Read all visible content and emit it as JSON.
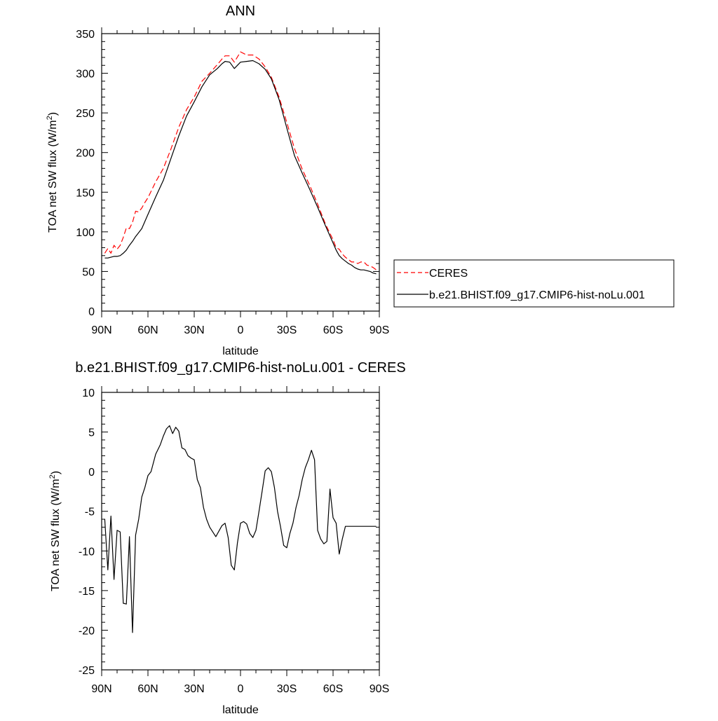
{
  "chart_data": [
    {
      "type": "line",
      "title": "ANN",
      "xlabel": "latitude",
      "ylabel": "TOA net SW flux (W/m²)",
      "ylabel_parts": {
        "main": "TOA net SW flux (W/m",
        "sup": "2",
        "end": ")"
      },
      "xlim": [
        90,
        -90
      ],
      "ylim": [
        0,
        350
      ],
      "x_ticks": [
        90,
        60,
        30,
        0,
        -30,
        -60,
        -90
      ],
      "x_tick_labels": [
        "90N",
        "60N",
        "30N",
        "0",
        "30S",
        "60S",
        "90S"
      ],
      "y_ticks": [
        0,
        50,
        100,
        150,
        200,
        250,
        300,
        350
      ],
      "y_tick_labels": [
        "0",
        "50",
        "100",
        "150",
        "200",
        "250",
        "300",
        "350"
      ],
      "x": [
        88,
        86,
        84,
        82,
        80,
        78,
        76,
        74,
        72,
        70,
        68,
        66,
        64,
        62,
        60,
        55,
        50,
        45,
        40,
        35,
        30,
        25,
        20,
        15,
        12,
        10,
        7,
        4,
        0,
        -4,
        -8,
        -12,
        -16,
        -20,
        -25,
        -30,
        -35,
        -40,
        -45,
        -50,
        -55,
        -60,
        -62,
        -64,
        -66,
        -68,
        -70,
        -72,
        -74,
        -76,
        -78,
        -80,
        -82,
        -84,
        -86,
        -88
      ],
      "series": [
        {
          "name": "CERES",
          "color": "#ff0000",
          "dash": true,
          "values": [
            73,
            79,
            73,
            83,
            78,
            83,
            93,
            105,
            104,
            112,
            126,
            125,
            130,
            137,
            143,
            163,
            180,
            205,
            232,
            254,
            270,
            290,
            300,
            311,
            318,
            322,
            322,
            314,
            327,
            323,
            323,
            318,
            308,
            295,
            270,
            238,
            205,
            179,
            158,
            135,
            110,
            90,
            80,
            78,
            72,
            68,
            65,
            62,
            62,
            60,
            62,
            62,
            58,
            57,
            55,
            52
          ]
        },
        {
          "name": "b.e21.BHIST.f09_g17.CMIP6-hist-noLu.001",
          "color": "#000000",
          "dash": false,
          "values": [
            67,
            67,
            68,
            69,
            69,
            70,
            73,
            77,
            83,
            88,
            94,
            99,
            104,
            113,
            122,
            144,
            165,
            193,
            221,
            246,
            264,
            283,
            298,
            306,
            312,
            315,
            314,
            306,
            314,
            315,
            316,
            312,
            305,
            293,
            267,
            231,
            196,
            174,
            153,
            131,
            108,
            86,
            77,
            70,
            66,
            63,
            60,
            58,
            55,
            53,
            52,
            52,
            51,
            50,
            48,
            47
          ]
        }
      ],
      "legend": {
        "placement": "right",
        "entries": [
          "CERES",
          "b.e21.BHIST.f09_g17.CMIP6-hist-noLu.001"
        ]
      }
    },
    {
      "type": "line",
      "title": "b.e21.BHIST.f09_g17.CMIP6-hist-noLu.001 - CERES",
      "xlabel": "latitude",
      "ylabel": "TOA net SW flux (W/m²)",
      "ylabel_parts": {
        "main": "TOA net SW flux (W/m",
        "sup": "2",
        "end": ")"
      },
      "xlim": [
        90,
        -90
      ],
      "ylim": [
        -25,
        10
      ],
      "x_ticks": [
        90,
        60,
        30,
        0,
        -30,
        -60,
        -90
      ],
      "x_tick_labels": [
        "90N",
        "60N",
        "30N",
        "0",
        "30S",
        "60S",
        "90S"
      ],
      "y_ticks": [
        -25,
        -20,
        -15,
        -10,
        -5,
        0,
        5,
        10
      ],
      "y_tick_labels": [
        "-25",
        "-20",
        "-15",
        "-10",
        "-5",
        "0",
        "5",
        "10"
      ],
      "x": [
        88,
        86,
        84,
        82,
        80,
        78,
        76,
        74,
        72,
        70,
        68,
        66,
        64,
        62,
        60,
        58,
        55,
        52,
        50,
        48,
        46,
        44,
        42,
        40,
        38,
        36,
        34,
        32,
        30,
        28,
        26,
        24,
        22,
        20,
        16,
        12,
        10,
        8,
        6,
        4,
        2,
        0,
        -2,
        -4,
        -6,
        -8,
        -10,
        -12,
        -14,
        -16,
        -18,
        -20,
        -22,
        -24,
        -26,
        -28,
        -30,
        -32,
        -34,
        -36,
        -38,
        -40,
        -42,
        -44,
        -46,
        -48,
        -50,
        -52,
        -54,
        -56,
        -58,
        -60,
        -62,
        -64,
        -66,
        -68,
        -70,
        -72,
        -74,
        -76,
        -78,
        -80,
        -82,
        -84,
        -86,
        -88
      ],
      "series": [
        {
          "name": "",
          "color": "#000000",
          "dash": false,
          "values": [
            -6.0,
            -12.4,
            -5.6,
            -13.6,
            -7.4,
            -7.6,
            -16.6,
            -16.7,
            -8.2,
            -20.3,
            -8.0,
            -6.0,
            -3.2,
            -2.0,
            -0.5,
            0.0,
            2.2,
            3.4,
            4.5,
            5.4,
            5.8,
            4.8,
            5.6,
            5.1,
            3.0,
            2.8,
            2.0,
            1.7,
            1.5,
            -1.0,
            -2.0,
            -4.5,
            -6.0,
            -7.0,
            -8.2,
            -6.8,
            -6.5,
            -8.3,
            -11.8,
            -12.4,
            -9.0,
            -6.5,
            -6.3,
            -6.6,
            -7.8,
            -8.3,
            -7.4,
            -5.0,
            -2.5,
            0.1,
            0.5,
            0.0,
            -2.0,
            -5.0,
            -7.0,
            -9.3,
            -9.6,
            -7.8,
            -6.5,
            -4.5,
            -3.0,
            -1.0,
            0.5,
            1.5,
            2.7,
            1.5,
            -7.4,
            -8.5,
            -9.1,
            -8.8,
            -2.2,
            -5.8,
            -6.5,
            -10.4,
            -8.5,
            -6.9,
            -6.9,
            -6.9,
            -6.9,
            -6.9,
            -6.9,
            -6.9,
            -6.9,
            -6.9,
            -6.9,
            -6.9
          ]
        }
      ]
    }
  ]
}
